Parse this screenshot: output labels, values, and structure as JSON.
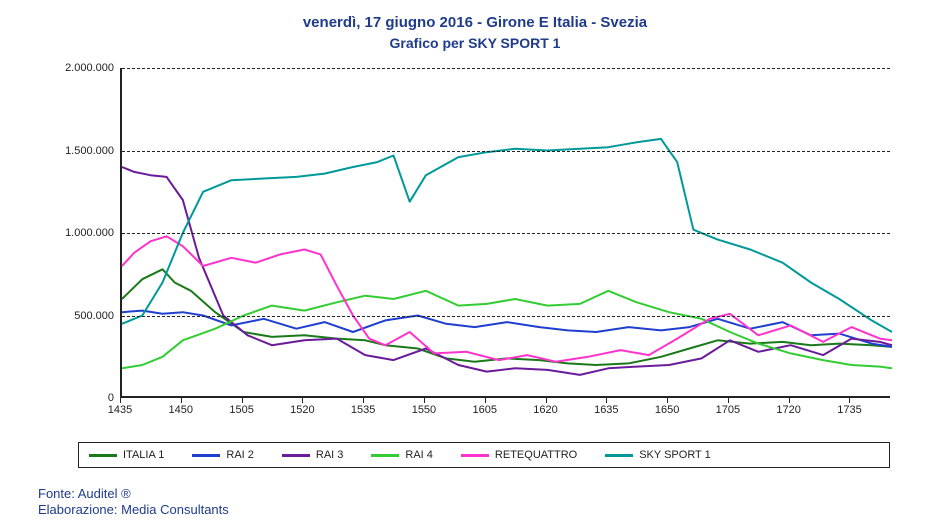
{
  "title": "venerdì, 17 giugno 2016 - Girone E Italia - Svezia",
  "subtitle": "Grafico per SKY SPORT 1",
  "footer_source": "Fonte: Auditel ®",
  "footer_elab": "Elaborazione: Media Consultants",
  "chart": {
    "type": "line",
    "background_color": "#ffffff",
    "grid_color": "#222222",
    "grid_dash": "6,6",
    "axis_color": "#222222",
    "title_fontsize": 15,
    "subtitle_fontsize": 14,
    "title_color": "#1f3b8b",
    "label_fontsize": 11,
    "line_width": 2,
    "ylim": [
      0,
      2000000
    ],
    "ytick_step": 500000,
    "ytick_labels": [
      "0",
      "500.000",
      "1.000.000",
      "1.500.000",
      "2.000.000"
    ],
    "xlim": [
      1435,
      1745
    ],
    "xticks": [
      1435,
      1450,
      1505,
      1520,
      1535,
      1550,
      1605,
      1620,
      1635,
      1650,
      1705,
      1720,
      1735
    ],
    "series": [
      {
        "name": "ITALIA 1",
        "color": "#1a7a1a",
        "x": [
          1435,
          1440,
          1445,
          1448,
          1452,
          1458,
          1505,
          1512,
          1520,
          1528,
          1535,
          1540,
          1548,
          1555,
          1602,
          1610,
          1618,
          1625,
          1632,
          1640,
          1648,
          1655,
          1702,
          1710,
          1718,
          1725,
          1732,
          1740,
          1745
        ],
        "y": [
          600000,
          720000,
          780000,
          700000,
          650000,
          520000,
          400000,
          370000,
          380000,
          360000,
          350000,
          320000,
          300000,
          240000,
          220000,
          240000,
          230000,
          210000,
          200000,
          210000,
          250000,
          300000,
          350000,
          330000,
          340000,
          320000,
          330000,
          320000,
          310000
        ]
      },
      {
        "name": "RAI 2",
        "color": "#1f3fcf",
        "x": [
          1435,
          1440,
          1445,
          1450,
          1455,
          1502,
          1510,
          1518,
          1525,
          1532,
          1540,
          1548,
          1555,
          1602,
          1610,
          1618,
          1625,
          1632,
          1640,
          1648,
          1655,
          1702,
          1710,
          1718,
          1725,
          1732,
          1740,
          1745
        ],
        "y": [
          520000,
          530000,
          510000,
          520000,
          500000,
          440000,
          480000,
          420000,
          460000,
          400000,
          470000,
          500000,
          450000,
          430000,
          460000,
          430000,
          410000,
          400000,
          430000,
          410000,
          430000,
          480000,
          420000,
          460000,
          380000,
          390000,
          330000,
          310000
        ]
      },
      {
        "name": "RAI 3",
        "color": "#6a1b9a",
        "x": [
          1435,
          1438,
          1442,
          1446,
          1450,
          1454,
          1500,
          1506,
          1512,
          1520,
          1528,
          1535,
          1542,
          1550,
          1558,
          1605,
          1612,
          1620,
          1628,
          1635,
          1642,
          1650,
          1658,
          1705,
          1712,
          1720,
          1728,
          1735,
          1742,
          1745
        ],
        "y": [
          1400000,
          1370000,
          1350000,
          1340000,
          1200000,
          850000,
          500000,
          380000,
          320000,
          350000,
          360000,
          260000,
          230000,
          300000,
          200000,
          160000,
          180000,
          170000,
          140000,
          180000,
          190000,
          200000,
          240000,
          350000,
          280000,
          320000,
          260000,
          360000,
          340000,
          320000
        ]
      },
      {
        "name": "RAI 4",
        "color": "#33cc33",
        "x": [
          1435,
          1440,
          1445,
          1450,
          1458,
          1505,
          1512,
          1520,
          1528,
          1535,
          1542,
          1550,
          1558,
          1605,
          1612,
          1620,
          1628,
          1635,
          1642,
          1650,
          1658,
          1705,
          1712,
          1720,
          1728,
          1735,
          1742,
          1745
        ],
        "y": [
          180000,
          200000,
          250000,
          350000,
          420000,
          500000,
          560000,
          530000,
          580000,
          620000,
          600000,
          650000,
          560000,
          570000,
          600000,
          560000,
          570000,
          650000,
          580000,
          520000,
          480000,
          400000,
          330000,
          270000,
          230000,
          200000,
          190000,
          180000
        ]
      },
      {
        "name": "RETEQUATTRO",
        "color": "#ff33cc",
        "x": [
          1435,
          1438,
          1442,
          1446,
          1450,
          1455,
          1502,
          1508,
          1514,
          1520,
          1524,
          1528,
          1532,
          1536,
          1540,
          1546,
          1552,
          1600,
          1608,
          1615,
          1622,
          1630,
          1638,
          1645,
          1652,
          1700,
          1705,
          1712,
          1720,
          1728,
          1735,
          1742,
          1745
        ],
        "y": [
          800000,
          880000,
          950000,
          980000,
          920000,
          800000,
          850000,
          820000,
          870000,
          900000,
          870000,
          680000,
          500000,
          360000,
          320000,
          400000,
          270000,
          280000,
          230000,
          260000,
          220000,
          250000,
          290000,
          260000,
          360000,
          480000,
          510000,
          380000,
          440000,
          340000,
          430000,
          360000,
          350000
        ]
      },
      {
        "name": "SKY SPORT 1",
        "color": "#009999",
        "x": [
          1435,
          1440,
          1445,
          1450,
          1455,
          1502,
          1510,
          1518,
          1525,
          1532,
          1538,
          1542,
          1546,
          1550,
          1558,
          1605,
          1612,
          1620,
          1628,
          1635,
          1642,
          1648,
          1652,
          1656,
          1702,
          1710,
          1718,
          1725,
          1732,
          1740,
          1745
        ],
        "y": [
          450000,
          500000,
          700000,
          1000000,
          1250000,
          1320000,
          1330000,
          1340000,
          1360000,
          1400000,
          1430000,
          1470000,
          1190000,
          1350000,
          1460000,
          1490000,
          1510000,
          1500000,
          1510000,
          1520000,
          1550000,
          1570000,
          1430000,
          1020000,
          960000,
          900000,
          820000,
          700000,
          600000,
          470000,
          400000
        ]
      }
    ]
  }
}
